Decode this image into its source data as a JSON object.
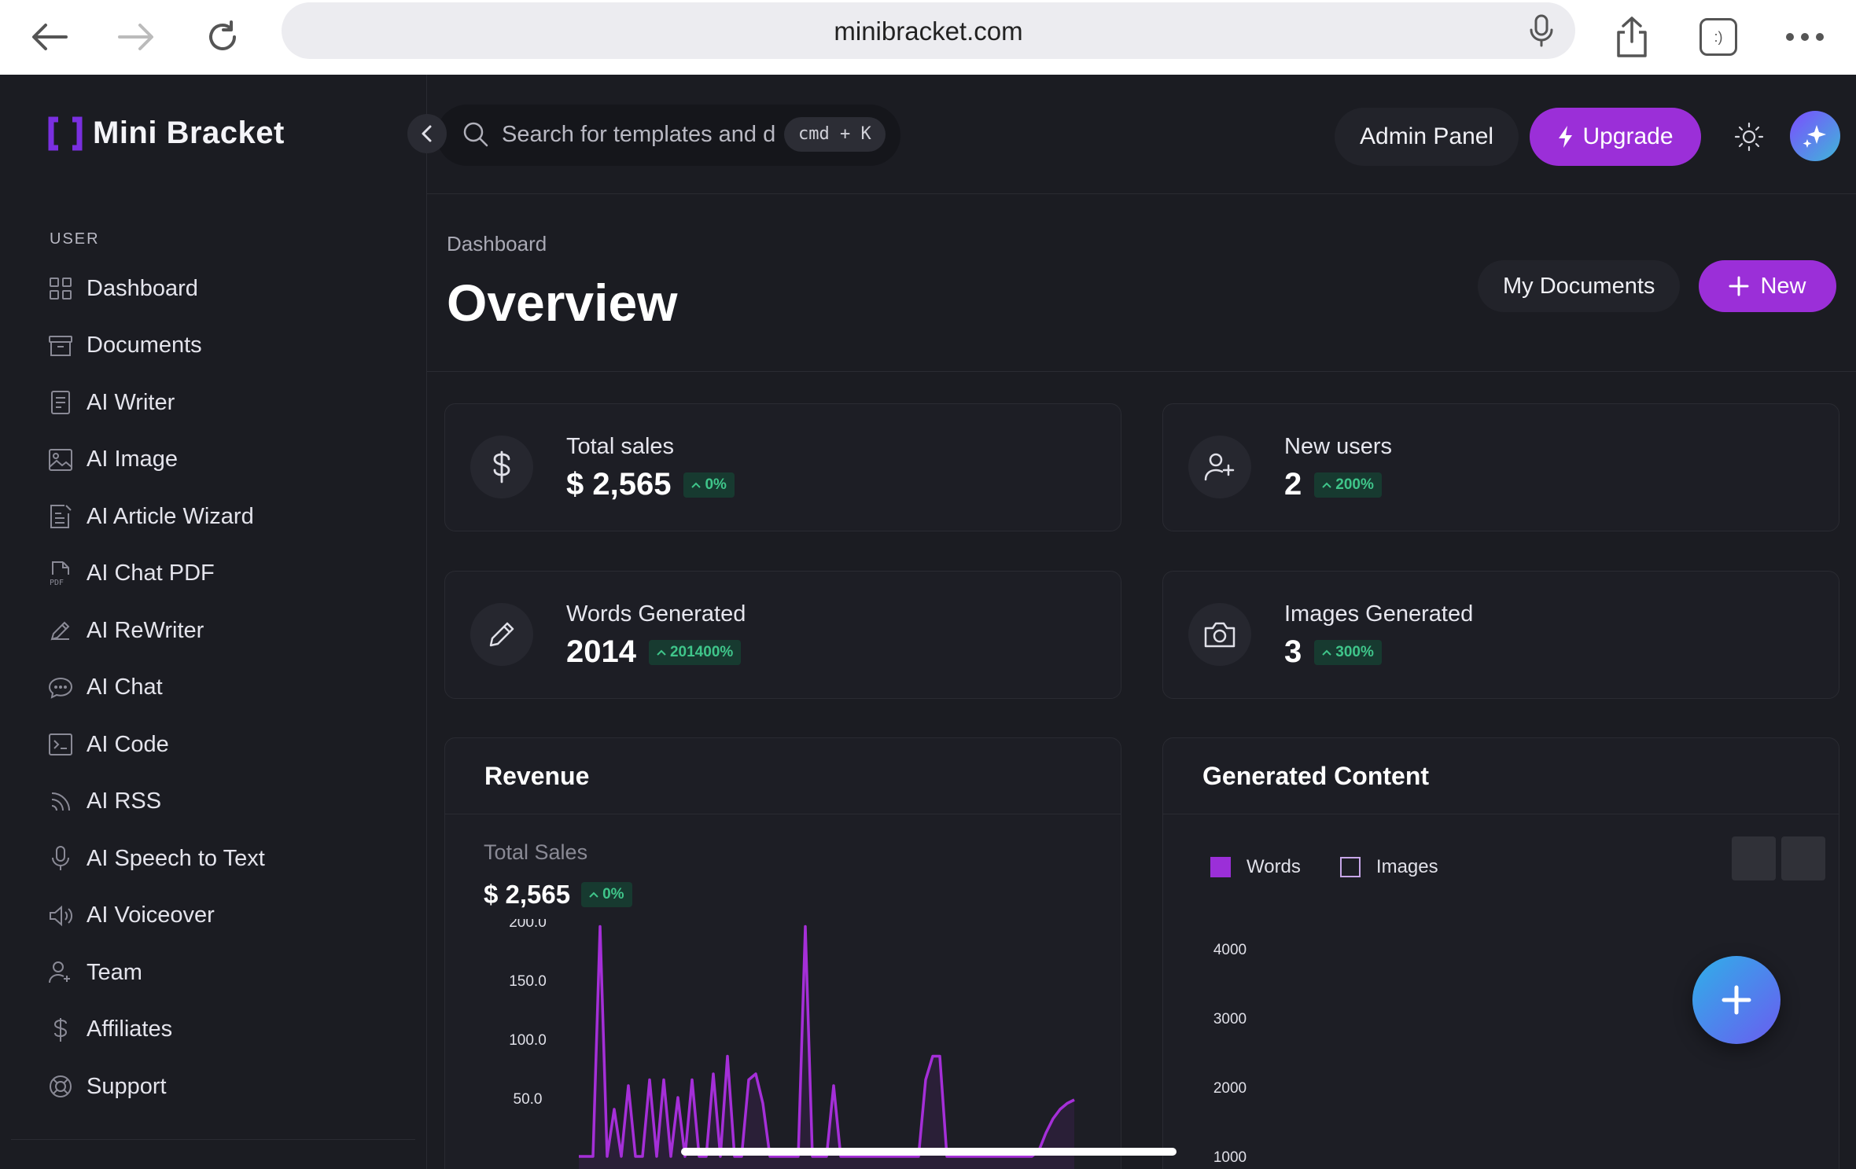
{
  "browser": {
    "url": "minibracket.com",
    "tab_icon": ":)"
  },
  "brand": {
    "name": "Mini Bracket",
    "accent": "#9b2fd8"
  },
  "sidebar": {
    "section_label": "USER",
    "items": [
      {
        "label": "Dashboard",
        "icon": "grid-icon"
      },
      {
        "label": "Documents",
        "icon": "archive-icon"
      },
      {
        "label": "AI Writer",
        "icon": "document-icon"
      },
      {
        "label": "AI Image",
        "icon": "image-icon"
      },
      {
        "label": "AI Article Wizard",
        "icon": "article-icon"
      },
      {
        "label": "AI Chat PDF",
        "icon": "pdf-icon"
      },
      {
        "label": "AI ReWriter",
        "icon": "pencil-icon"
      },
      {
        "label": "AI Chat",
        "icon": "chat-icon"
      },
      {
        "label": "AI Code",
        "icon": "terminal-icon"
      },
      {
        "label": "AI RSS",
        "icon": "rss-icon"
      },
      {
        "label": "AI Speech to Text",
        "icon": "microphone-icon"
      },
      {
        "label": "AI Voiceover",
        "icon": "speaker-icon"
      },
      {
        "label": "Team",
        "icon": "user-plus-icon"
      },
      {
        "label": "Affiliates",
        "icon": "dollar-icon"
      },
      {
        "label": "Support",
        "icon": "lifebuoy-icon"
      }
    ]
  },
  "header": {
    "search_placeholder": "Search for templates and d",
    "shortcut": "cmd + K",
    "admin_label": "Admin Panel",
    "upgrade_label": "Upgrade"
  },
  "page": {
    "breadcrumb": "Dashboard",
    "title": "Overview",
    "my_documents_label": "My Documents",
    "new_label": "New"
  },
  "stats": [
    {
      "label": "Total sales",
      "value": "$ 2,565",
      "change": "0%",
      "icon": "dollar-icon"
    },
    {
      "label": "New users",
      "value": "2",
      "change": "200%",
      "icon": "user-plus-icon"
    },
    {
      "label": "Words Generated",
      "value": "2014",
      "change": "201400%",
      "icon": "pencil-icon"
    },
    {
      "label": "Images Generated",
      "value": "3",
      "change": "300%",
      "icon": "camera-icon"
    }
  ],
  "revenue": {
    "title": "Revenue",
    "subtitle": "Total Sales",
    "value": "$ 2,565",
    "change": "0%"
  },
  "generated": {
    "title": "Generated Content",
    "legend": [
      "Words",
      "Images"
    ]
  },
  "chart_data": [
    {
      "type": "area",
      "title": "Revenue",
      "y_ticks": [
        "200.0",
        "150.0",
        "100.0",
        "50.0"
      ],
      "ylim": [
        0,
        200
      ],
      "series": [
        {
          "values": [
            0,
            0,
            0,
            195,
            0,
            40,
            0,
            60,
            0,
            0,
            65,
            0,
            65,
            0,
            50,
            0,
            65,
            0,
            0,
            70,
            0,
            85,
            0,
            0,
            65,
            70,
            45,
            0,
            0,
            0,
            0,
            0,
            195,
            0,
            0,
            0,
            60,
            0,
            0,
            0,
            0,
            0,
            0,
            0,
            0,
            0,
            0,
            0,
            0,
            65,
            85,
            85,
            0,
            0,
            0,
            0,
            0,
            0,
            0,
            0,
            0,
            0,
            0,
            0,
            0,
            5,
            20,
            32,
            40,
            45,
            48
          ]
        }
      ]
    },
    {
      "type": "bar",
      "title": "Generated Content",
      "y_ticks": [
        "4000",
        "3000",
        "2000",
        "1000"
      ],
      "ylim": [
        0,
        4000
      ],
      "series": [
        {
          "name": "Words",
          "values": []
        },
        {
          "name": "Images",
          "values": []
        }
      ]
    }
  ]
}
